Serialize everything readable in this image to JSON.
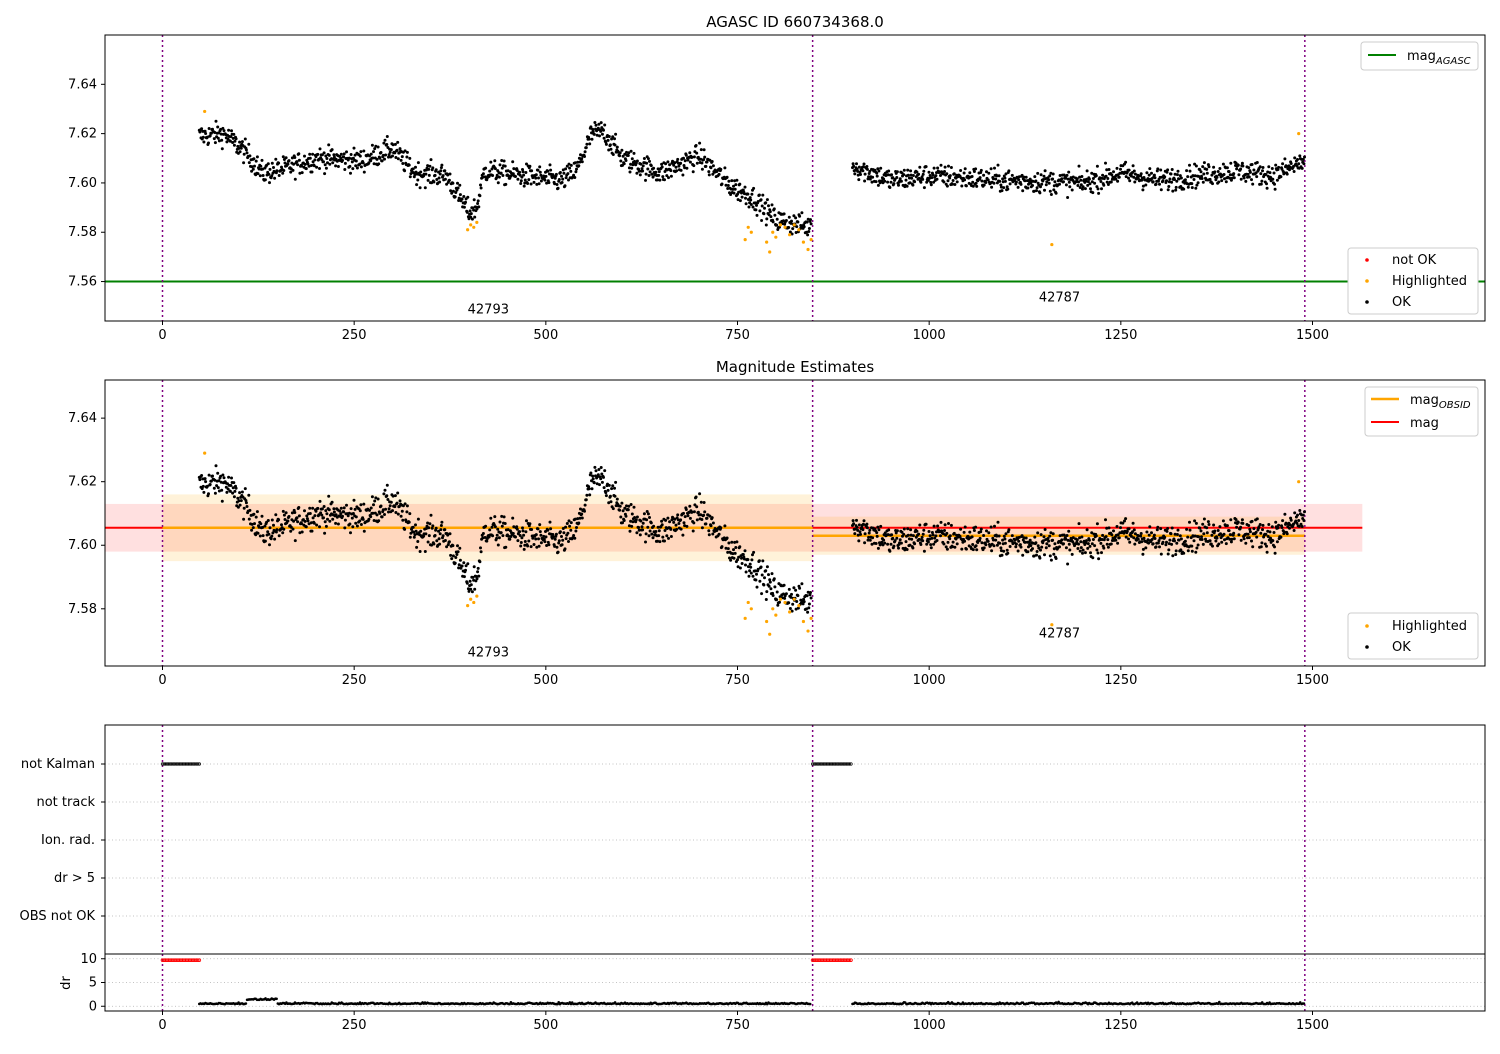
{
  "chart_data": [
    {
      "type": "scatter",
      "title": "AGASC ID 660734368.0",
      "xlim": [
        -75,
        1725
      ],
      "ylim": [
        7.544,
        7.66
      ],
      "xticks": [
        0,
        250,
        500,
        750,
        1000,
        1250,
        1500
      ],
      "yticks": [
        7.56,
        7.58,
        7.6,
        7.62,
        7.64
      ],
      "mag_agasc": 7.56,
      "obs_boundaries": [
        0,
        848,
        1490
      ],
      "obs_labels": [
        {
          "text": "42793",
          "x": 425,
          "y": 7.547
        },
        {
          "text": "42787",
          "x": 1170,
          "y": 7.552
        }
      ],
      "legend_lines": [
        {
          "label_main": "mag",
          "label_sub": "AGASC",
          "color": "#008000"
        }
      ],
      "legend_points": [
        {
          "label": "not OK",
          "color": "#ff0000"
        },
        {
          "label": "Highlighted",
          "color": "#ffa500"
        },
        {
          "label": "OK",
          "color": "#000000"
        }
      ],
      "highlighted_points": [
        {
          "x": 55,
          "y": 7.629
        },
        {
          "x": 398,
          "y": 7.581
        },
        {
          "x": 402,
          "y": 7.583
        },
        {
          "x": 406,
          "y": 7.582
        },
        {
          "x": 410,
          "y": 7.584
        },
        {
          "x": 760,
          "y": 7.577
        },
        {
          "x": 764,
          "y": 7.582
        },
        {
          "x": 768,
          "y": 7.58
        },
        {
          "x": 788,
          "y": 7.576
        },
        {
          "x": 792,
          "y": 7.572
        },
        {
          "x": 796,
          "y": 7.58
        },
        {
          "x": 800,
          "y": 7.578
        },
        {
          "x": 806,
          "y": 7.583
        },
        {
          "x": 812,
          "y": 7.582
        },
        {
          "x": 818,
          "y": 7.579
        },
        {
          "x": 824,
          "y": 7.583
        },
        {
          "x": 830,
          "y": 7.581
        },
        {
          "x": 836,
          "y": 7.576
        },
        {
          "x": 842,
          "y": 7.573
        },
        {
          "x": 846,
          "y": 7.577
        },
        {
          "x": 1160,
          "y": 7.575
        },
        {
          "x": 1482,
          "y": 7.62
        }
      ]
    },
    {
      "type": "scatter",
      "title": "Magnitude Estimates",
      "xlim": [
        -75,
        1725
      ],
      "ylim": [
        7.562,
        7.652
      ],
      "xticks": [
        0,
        250,
        500,
        750,
        1000,
        1250,
        1500
      ],
      "yticks": [
        7.58,
        7.6,
        7.62,
        7.64
      ],
      "mag": 7.6055,
      "mag_band": [
        7.598,
        7.613
      ],
      "band_x": [
        -75,
        1565
      ],
      "mag_obsid": [
        {
          "x": [
            0,
            848
          ],
          "y": 7.6055,
          "band": [
            7.595,
            7.616
          ]
        },
        {
          "x": [
            848,
            1490
          ],
          "y": 7.603,
          "band": [
            7.597,
            7.609
          ]
        }
      ],
      "obs_boundaries": [
        0,
        848,
        1490
      ],
      "obs_labels": [
        {
          "text": "42793",
          "x": 425,
          "y": 7.565
        },
        {
          "text": "42787",
          "x": 1170,
          "y": 7.571
        }
      ],
      "legend_lines": [
        {
          "label_main": "mag",
          "label_sub": "OBSID",
          "color": "#ffa500"
        },
        {
          "label_main": "mag",
          "label_sub": "",
          "color": "#ff0000"
        }
      ],
      "legend_points": [
        {
          "label": "Highlighted",
          "color": "#ffa500"
        },
        {
          "label": "OK",
          "color": "#000000"
        }
      ]
    },
    {
      "type": "scatter",
      "xlim": [
        -75,
        1725
      ],
      "flag_categories": [
        "not Kalman",
        "not track",
        "Ion. rad.",
        "dr > 5",
        "OBS not OK"
      ],
      "flag_segments": [
        {
          "category": "not Kalman",
          "x": [
            0,
            48
          ]
        },
        {
          "category": "not Kalman",
          "x": [
            848,
            898
          ]
        }
      ],
      "dr_ylabel": "dr",
      "dr_yticks": [
        0,
        5,
        10
      ],
      "dr_ylim": [
        -1,
        11
      ],
      "dr_high_segments": [
        {
          "x": [
            0,
            48
          ],
          "y": 9.7
        },
        {
          "x": [
            848,
            898
          ],
          "y": 9.7
        }
      ],
      "xticks": [
        0,
        250,
        500,
        750,
        1000,
        1250,
        1500
      ]
    }
  ]
}
